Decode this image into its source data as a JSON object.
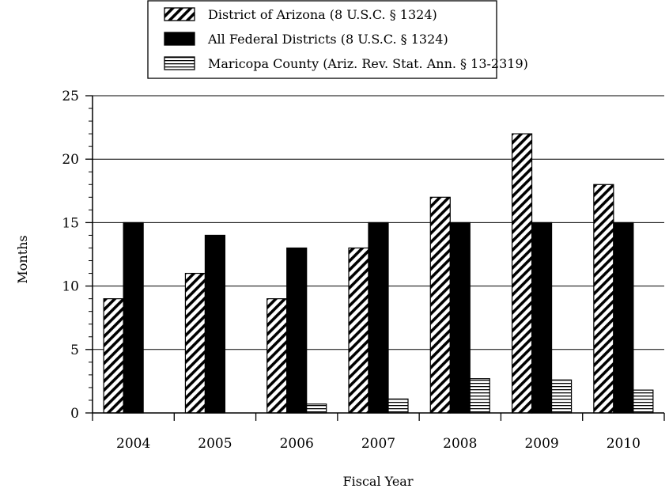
{
  "chart_data": {
    "type": "bar",
    "title": "",
    "xlabel": "Fiscal Year",
    "ylabel": "Months",
    "ylim": [
      0,
      25
    ],
    "yticks": [
      0,
      5,
      10,
      15,
      20,
      25
    ],
    "grid": true,
    "legend_position": "top-center",
    "categories": [
      "2004",
      "2005",
      "2006",
      "2007",
      "2008",
      "2009",
      "2010"
    ],
    "series": [
      {
        "name": "District of Arizona (8 U.S.C. § 1324)",
        "pattern": "diagonal-hatch",
        "color": "#000000",
        "values": [
          9,
          11,
          9,
          13,
          17,
          22,
          18
        ]
      },
      {
        "name": "All Federal Districts (8 U.S.C. § 1324)",
        "pattern": "solid",
        "color": "#000000",
        "values": [
          15,
          14,
          13,
          15,
          15,
          15,
          15
        ]
      },
      {
        "name": "Maricopa County (Ariz. Rev. Stat. Ann. § 13-2319)",
        "pattern": "horizontal-lines",
        "color": "#000000",
        "values": [
          0,
          0,
          0.7,
          1.1,
          2.7,
          2.6,
          1.8
        ]
      }
    ]
  }
}
